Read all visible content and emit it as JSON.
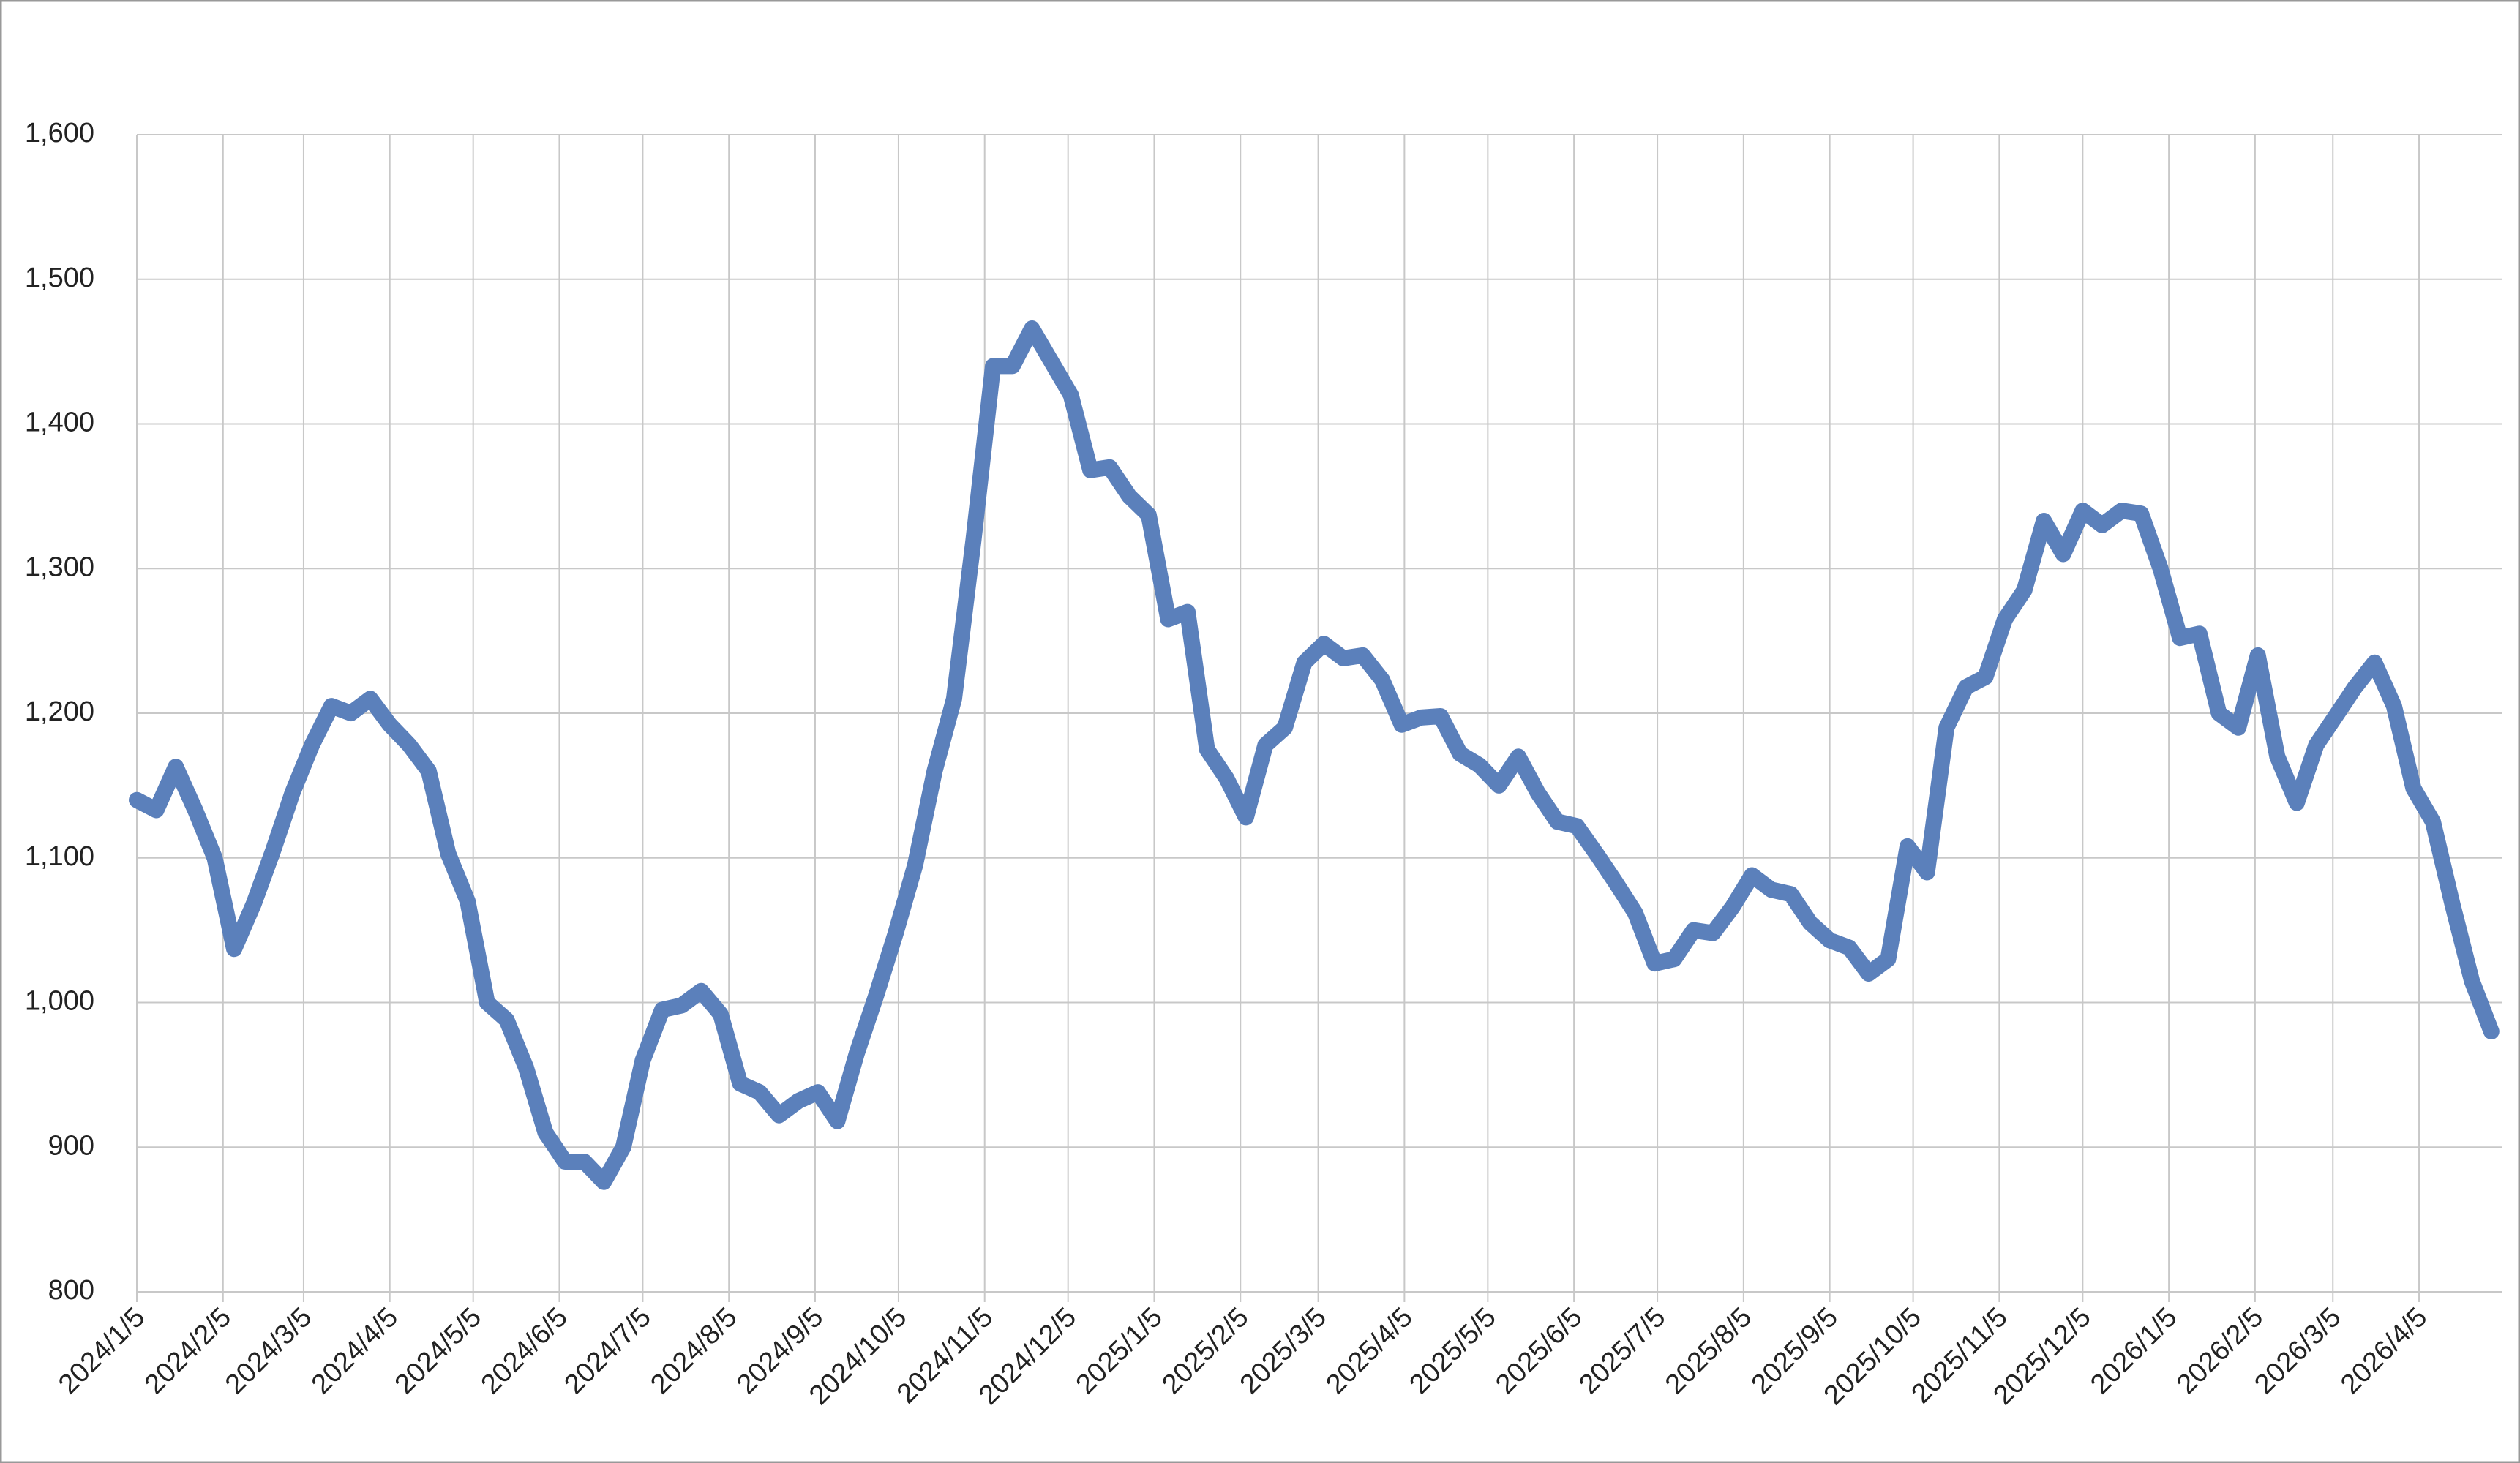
{
  "chart_data": {
    "type": "line",
    "x": [
      "2024/1/5",
      "2024/1/12",
      "2024/1/19",
      "2024/1/26",
      "2024/2/2",
      "2024/2/9",
      "2024/2/16",
      "2024/2/23",
      "2024/3/1",
      "2024/3/8",
      "2024/3/15",
      "2024/3/22",
      "2024/3/29",
      "2024/4/5",
      "2024/4/12",
      "2024/4/19",
      "2024/4/26",
      "2024/5/3",
      "2024/5/10",
      "2024/5/17",
      "2024/5/24",
      "2024/5/31",
      "2024/6/7",
      "2024/6/14",
      "2024/6/21",
      "2024/6/28",
      "2024/7/5",
      "2024/7/12",
      "2024/7/19",
      "2024/7/26",
      "2024/8/2",
      "2024/8/9",
      "2024/8/16",
      "2024/8/23",
      "2024/8/30",
      "2024/9/6",
      "2024/9/13",
      "2024/9/20",
      "2024/9/27",
      "2024/10/4",
      "2024/10/11",
      "2024/10/18",
      "2024/10/25",
      "2024/11/1",
      "2024/11/8",
      "2024/11/15",
      "2024/11/22",
      "2024/11/29",
      "2024/12/6",
      "2024/12/13",
      "2024/12/20",
      "2024/12/27",
      "2025/1/3",
      "2025/1/10",
      "2025/1/17",
      "2025/1/24",
      "2025/1/31",
      "2025/2/7",
      "2025/2/14",
      "2025/2/21",
      "2025/2/28",
      "2025/3/7",
      "2025/3/14",
      "2025/3/21",
      "2025/3/28",
      "2025/4/4",
      "2025/4/11",
      "2025/4/18",
      "2025/4/25",
      "2025/5/2",
      "2025/5/9",
      "2025/5/16",
      "2025/5/23",
      "2025/5/30",
      "2025/6/6",
      "2025/6/13",
      "2025/6/20",
      "2025/6/27",
      "2025/7/4",
      "2025/7/11",
      "2025/7/18",
      "2025/7/25",
      "2025/8/1",
      "2025/8/8",
      "2025/8/15",
      "2025/8/22",
      "2025/8/29",
      "2025/9/5",
      "2025/9/12",
      "2025/9/19",
      "2025/9/26",
      "2025/10/3",
      "2025/10/10",
      "2025/10/17",
      "2025/10/24",
      "2025/10/31",
      "2025/11/7",
      "2025/11/14",
      "2025/11/21",
      "2025/11/28",
      "2025/12/5",
      "2025/12/12",
      "2025/12/19",
      "2025/12/26",
      "2026/1/2",
      "2026/1/9",
      "2026/1/16",
      "2026/1/23",
      "2026/1/30",
      "2026/2/6",
      "2026/2/13",
      "2026/2/20",
      "2026/2/27",
      "2026/3/6",
      "2026/3/13",
      "2026/3/20",
      "2026/3/27",
      "2026/4/3",
      "2026/4/10",
      "2026/4/17",
      "2026/4/24",
      "2026/5/1"
    ],
    "series": [
      {
        "color": "#5b80bb",
        "values": [
          1140,
          1133,
          1163,
          1133,
          1100,
          1037,
          1068,
          1105,
          1145,
          1178,
          1205,
          1200,
          1210,
          1192,
          1178,
          1160,
          1103,
          1070,
          1000,
          988,
          955,
          910,
          890,
          890,
          876,
          900,
          960,
          995,
          998,
          1008,
          992,
          944,
          938,
          922,
          932,
          938,
          918,
          965,
          1005,
          1048,
          1095,
          1160,
          1210,
          1320,
          1440,
          1440,
          1466,
          1443,
          1420,
          1368,
          1370,
          1350,
          1337,
          1265,
          1270,
          1175,
          1155,
          1128,
          1178,
          1190,
          1235,
          1248,
          1238,
          1240,
          1223,
          1192,
          1197,
          1198,
          1172,
          1164,
          1150,
          1170,
          1145,
          1125,
          1122,
          1103,
          1083,
          1062,
          1027,
          1030,
          1050,
          1048,
          1066,
          1088,
          1078,
          1075,
          1055,
          1043,
          1038,
          1020,
          1030,
          1108,
          1090,
          1190,
          1218,
          1225,
          1265,
          1285,
          1333,
          1310,
          1340,
          1330,
          1340,
          1338,
          1300,
          1252,
          1255,
          1200,
          1190,
          1240,
          1170,
          1138,
          1178,
          1198,
          1218,
          1235,
          1205,
          1148,
          1125,
          1068,
          1015,
          980
        ]
      }
    ],
    "xlim": [
      "2024/1/5",
      "2026/5/5"
    ],
    "xticks": [
      "2024/1/5",
      "2024/2/5",
      "2024/3/5",
      "2024/4/5",
      "2024/5/5",
      "2024/6/5",
      "2024/7/5",
      "2024/8/5",
      "2024/9/5",
      "2024/10/5",
      "2024/11/5",
      "2024/12/5",
      "2025/1/5",
      "2025/2/5",
      "2025/3/5",
      "2025/4/5",
      "2025/5/5",
      "2025/6/5",
      "2025/7/5",
      "2025/8/5",
      "2025/9/5",
      "2025/10/5",
      "2025/11/5",
      "2025/12/5",
      "2026/1/5",
      "2026/2/5",
      "2026/3/5",
      "2026/4/5"
    ],
    "ylim": [
      800,
      1600
    ],
    "yticks": [
      800,
      900,
      {
        "value": 1000,
        "label": "1,000"
      },
      {
        "value": 1100,
        "label": "1,100"
      },
      {
        "value": 1200,
        "label": "1,200"
      },
      {
        "value": 1300,
        "label": "1,300"
      },
      {
        "value": 1400,
        "label": "1,400"
      },
      {
        "value": 1500,
        "label": "1,500"
      },
      {
        "value": 1600,
        "label": "1,600"
      }
    ],
    "grid": true
  }
}
